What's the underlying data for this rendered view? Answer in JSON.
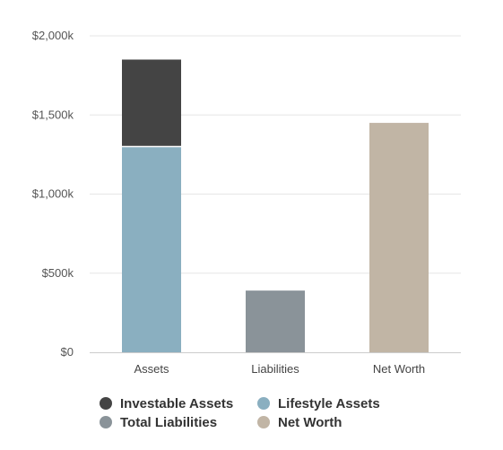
{
  "chart_data": {
    "type": "bar",
    "stacked": true,
    "categories": [
      "Assets",
      "Liabilities",
      "Net Worth"
    ],
    "series": [
      {
        "name": "Lifestyle Assets",
        "color": "#8aafc0",
        "values": [
          1300000,
          0,
          0
        ]
      },
      {
        "name": "Investable Assets",
        "color": "#444444",
        "values": [
          550000,
          0,
          0
        ]
      },
      {
        "name": "Total Liabilities",
        "color": "#8a9399",
        "values": [
          0,
          390000,
          0
        ]
      },
      {
        "name": "Net Worth",
        "color": "#c1b5a5",
        "values": [
          0,
          0,
          1450000
        ]
      }
    ],
    "ylim": [
      0,
      2000000
    ],
    "yticks": [
      0,
      500000,
      1000000,
      1500000,
      2000000
    ],
    "ytick_labels": [
      "$0",
      "$500k",
      "$1,000k",
      "$1,500k",
      "$2,000k"
    ],
    "grid": true,
    "legend": {
      "placement": "bottom-left",
      "entries": [
        {
          "name": "Investable Assets",
          "color": "#444444"
        },
        {
          "name": "Lifestyle Assets",
          "color": "#8aafc0"
        },
        {
          "name": "Total Liabilities",
          "color": "#8a9399"
        },
        {
          "name": "Net Worth",
          "color": "#c1b5a5"
        }
      ]
    }
  }
}
